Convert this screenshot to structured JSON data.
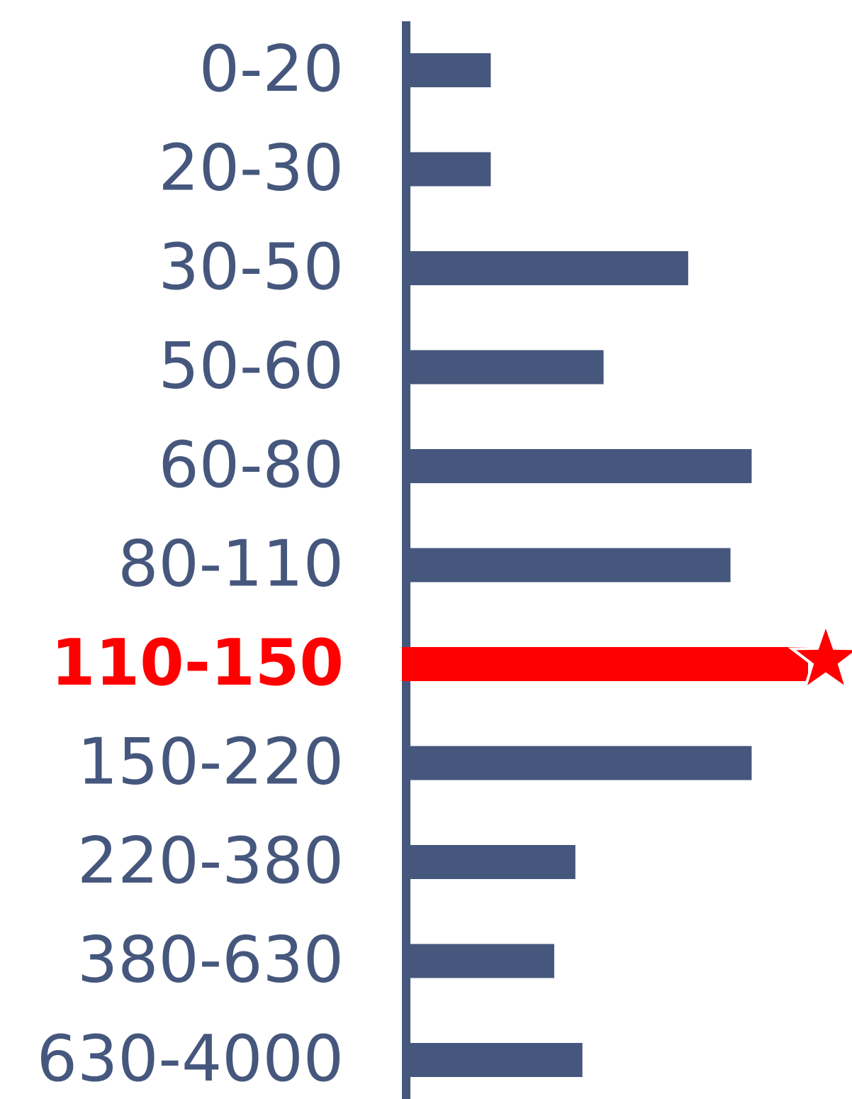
{
  "chart_data": {
    "type": "bar",
    "orientation": "horizontal",
    "categories": [
      "0-20",
      "20-30",
      "30-50",
      "50-60",
      "60-80",
      "80-110",
      "110-150",
      "150-220",
      "220-380",
      "380-630",
      "630-4000"
    ],
    "values": [
      12,
      12,
      40,
      28,
      49,
      46,
      57,
      49,
      24,
      21,
      25
    ],
    "color": "#46577d",
    "highlight_index": 6,
    "highlight_color": "#ff0000"
  }
}
